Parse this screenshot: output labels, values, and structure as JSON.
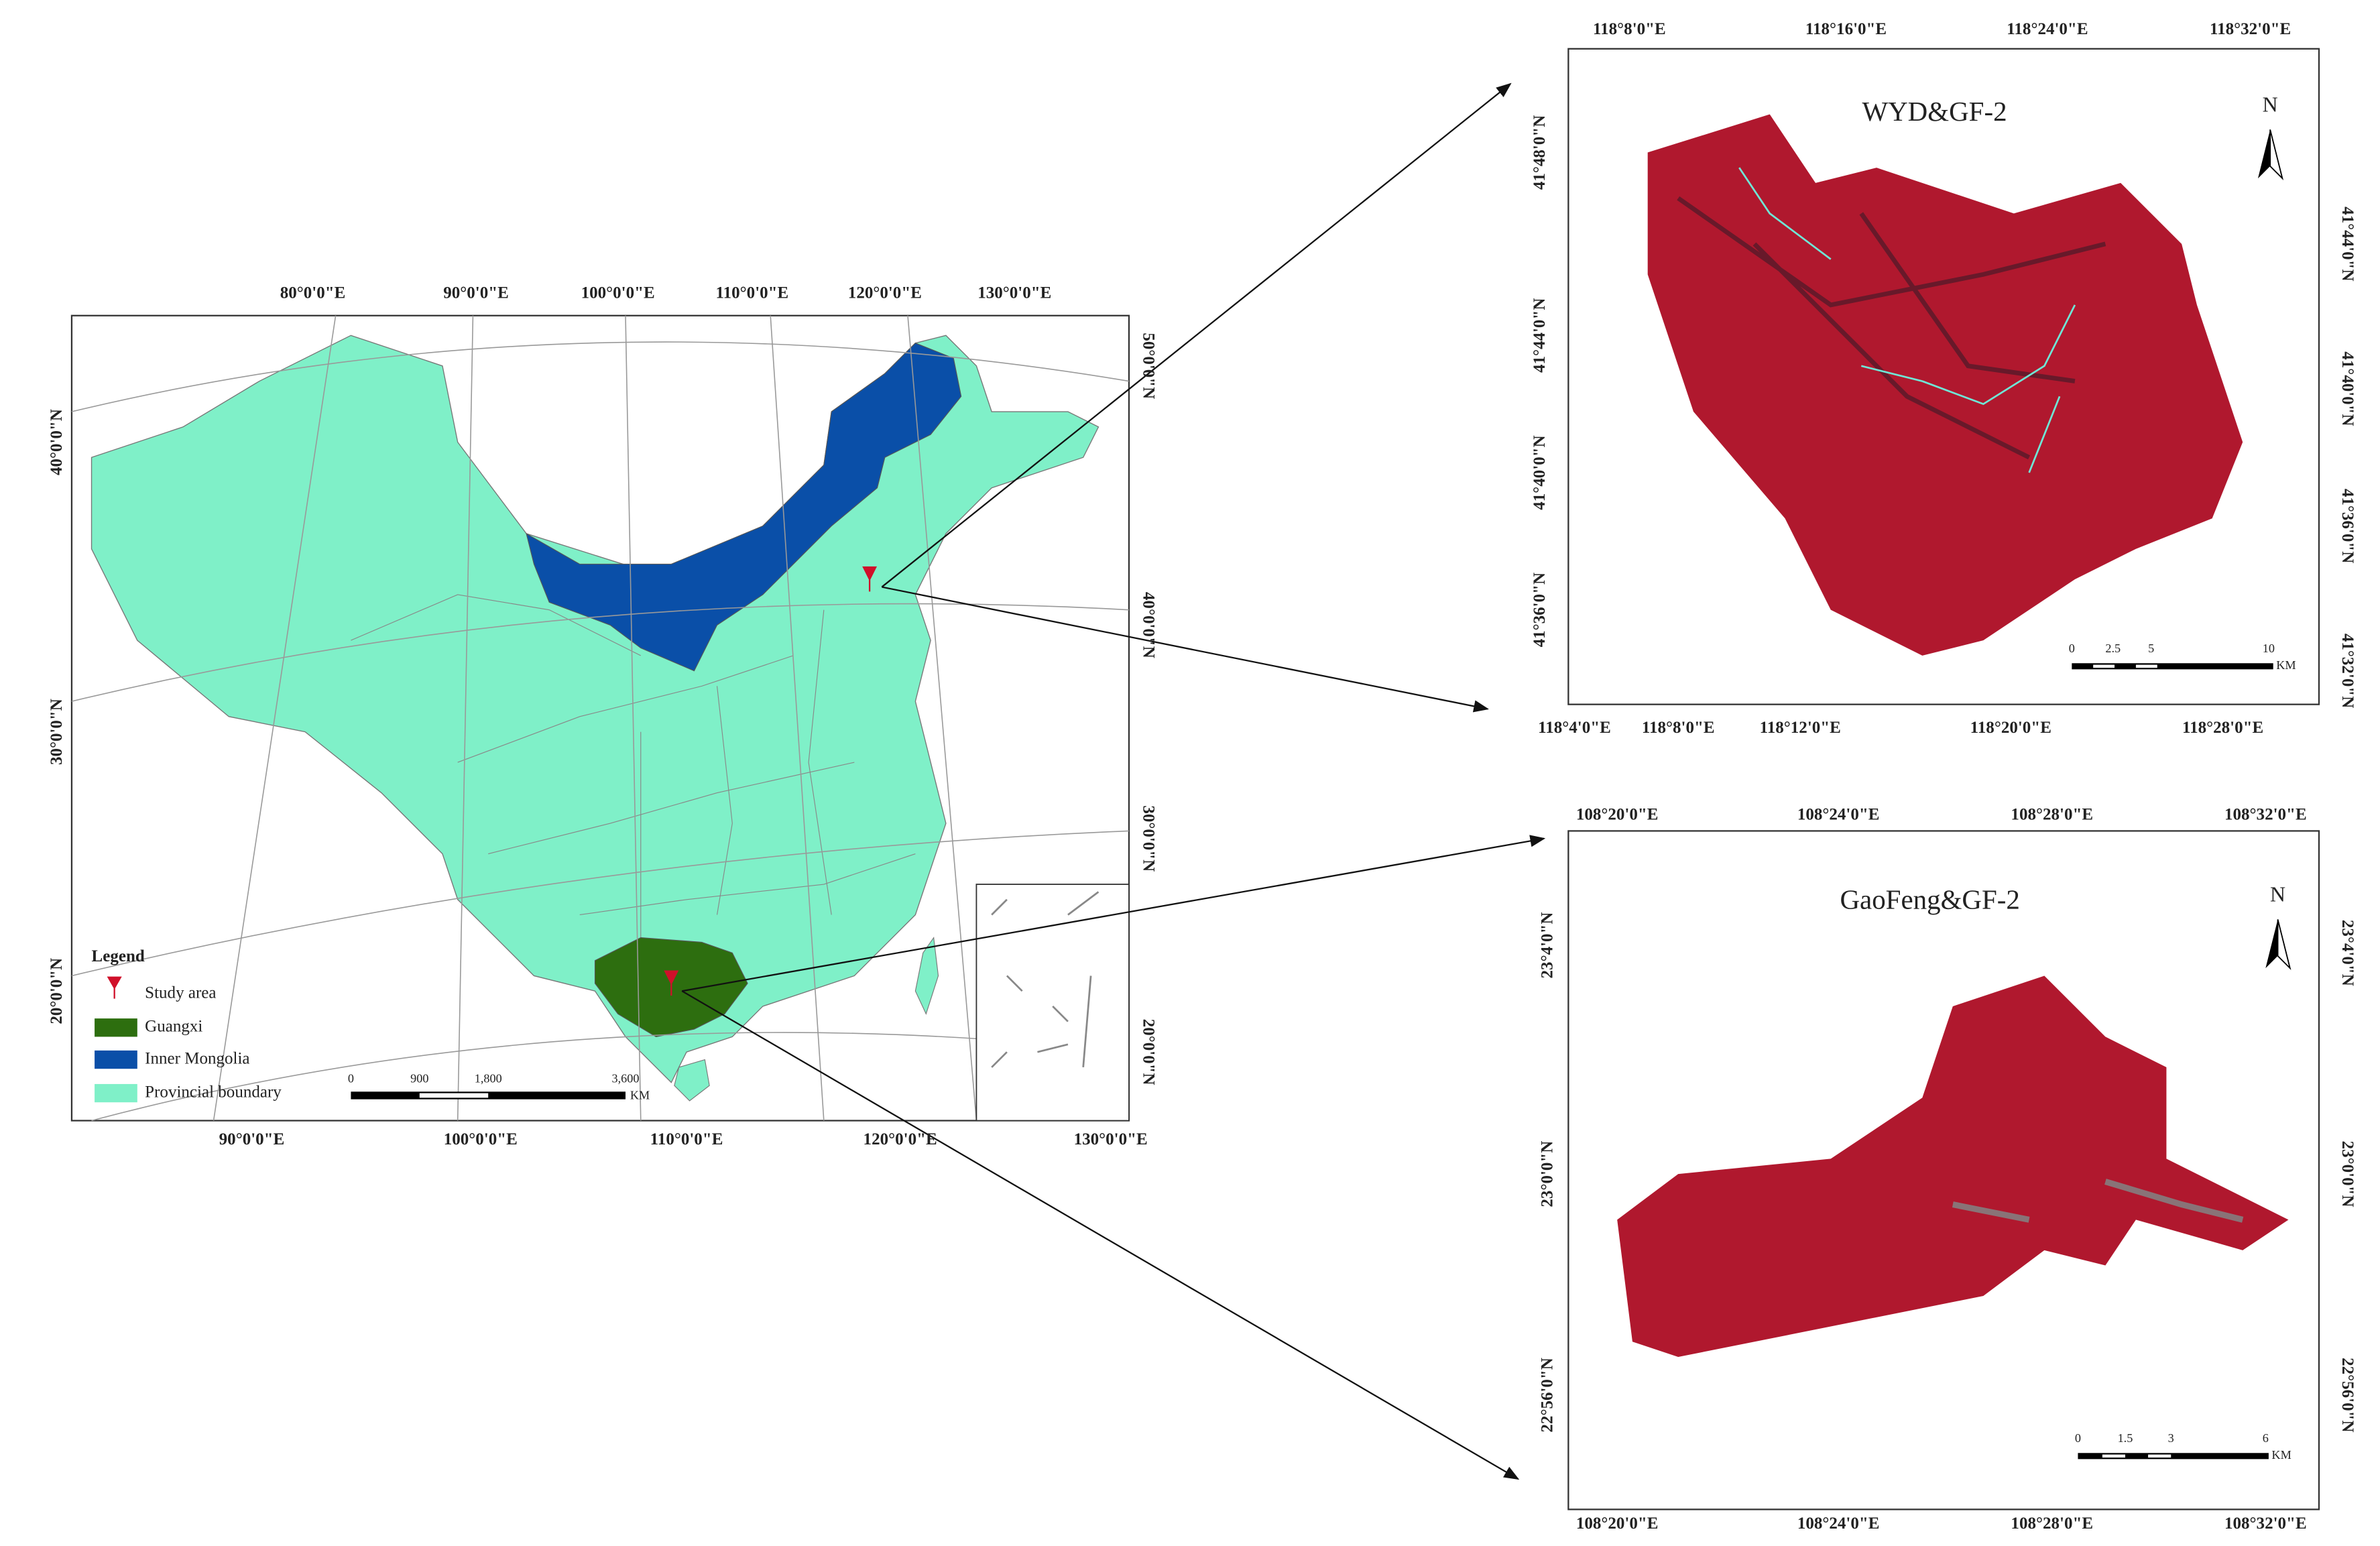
{
  "main_map": {
    "top_labels": [
      "80°0'0\"E",
      "90°0'0\"E",
      "100°0'0\"E",
      "110°0'0\"E",
      "120°0'0\"E",
      "130°0'0\"E"
    ],
    "bottom_labels": [
      "90°0'0\"E",
      "100°0'0\"E",
      "110°0'0\"E",
      "120°0'0\"E",
      "130°0'0\"E"
    ],
    "left_labels": [
      "40°0'0\"N",
      "30°0'0\"N",
      "20°0'0\"N"
    ],
    "right_labels": [
      "50°0'0\"N",
      "40°0'0\"N",
      "30°0'0\"N",
      "20°0'0\"N"
    ],
    "legend": {
      "title": "Legend",
      "items": [
        "Study area",
        "Guangxi",
        "Inner Mongolia",
        "Provincial boundary"
      ]
    },
    "scale": {
      "ticks": [
        "0",
        "900",
        "1,800",
        "3,600"
      ],
      "unit": "KM"
    }
  },
  "panels": [
    {
      "title": "WYD&GF-2",
      "north": "N",
      "top_labels": [
        "118°8'0\"E",
        "118°16'0\"E",
        "118°24'0\"E",
        "118°32'0\"E"
      ],
      "bottom_labels": [
        "118°4'0\"E",
        "118°8'0\"E",
        "118°12'0\"E",
        "118°20'0\"E",
        "118°28'0\"E"
      ],
      "left_labels": [
        "41°48'0\"N",
        "41°44'0\"N",
        "41°40'0\"N",
        "41°36'0\"N"
      ],
      "right_labels": [
        "41°44'0\"N",
        "41°40'0\"N",
        "41°36'0\"N",
        "41°32'0\"N"
      ],
      "scale": {
        "ticks": [
          "0",
          "2.5",
          "5",
          "10"
        ],
        "unit": "KM"
      }
    },
    {
      "title": "GaoFeng&GF-2",
      "north": "N",
      "top_labels": [
        "108°20'0\"E",
        "108°24'0\"E",
        "108°28'0\"E",
        "108°32'0\"E"
      ],
      "bottom_labels": [
        "108°20'0\"E",
        "108°24'0\"E",
        "108°28'0\"E",
        "108°32'0\"E"
      ],
      "left_labels": [
        "23°4'0\"N",
        "23°0'0\"N",
        "22°56'0\"N"
      ],
      "right_labels": [
        "23°4'0\"N",
        "23°0'0\"N",
        "22°56'0\"N"
      ],
      "scale": {
        "ticks": [
          "0",
          "1.5",
          "3",
          "6"
        ],
        "unit": "KM"
      }
    }
  ]
}
